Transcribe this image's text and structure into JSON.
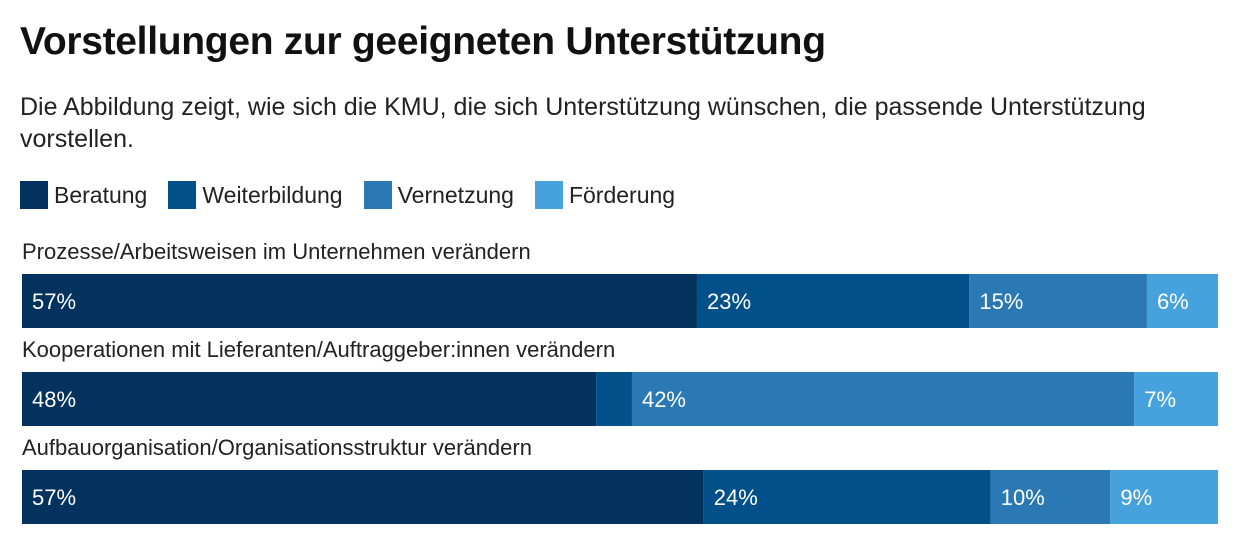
{
  "header": {
    "title": "Vorstellungen zur geeigneten Unterstützung",
    "subtitle": "Die Abbildung zeigt, wie sich die KMU, die sich Unterstützung wünschen, die passende Unterstützung vorstellen."
  },
  "legend": [
    {
      "label": "Beratung",
      "color": "#03325f"
    },
    {
      "label": "Weiterbildung",
      "color": "#02508a"
    },
    {
      "label": "Vernetzung",
      "color": "#2b79b4"
    },
    {
      "label": "Förderung",
      "color": "#46a2dc"
    }
  ],
  "chart_data": {
    "type": "bar",
    "orientation": "horizontal",
    "stacked": true,
    "categories": [
      "Prozesse/Arbeitsweisen im Unternehmen verändern",
      "Kooperationen mit Lieferanten/Auftraggeber:innen verändern",
      "Aufbauorganisation/Organisationsstruktur verändern"
    ],
    "series": [
      {
        "name": "Beratung",
        "color": "#03325f",
        "values": [
          57,
          48,
          57
        ],
        "labels": [
          "57%",
          "48%",
          "57%"
        ]
      },
      {
        "name": "Weiterbildung",
        "color": "#02508a",
        "values": [
          23,
          3,
          24
        ],
        "labels": [
          "23%",
          "",
          "24%"
        ]
      },
      {
        "name": "Vernetzung",
        "color": "#2b79b4",
        "values": [
          15,
          42,
          10
        ],
        "labels": [
          "15%",
          "42%",
          "10%"
        ]
      },
      {
        "name": "Förderung",
        "color": "#46a2dc",
        "values": [
          6,
          7,
          9
        ],
        "labels": [
          "6%",
          "7%",
          "9%"
        ]
      }
    ],
    "label_color": "#ffffff"
  }
}
